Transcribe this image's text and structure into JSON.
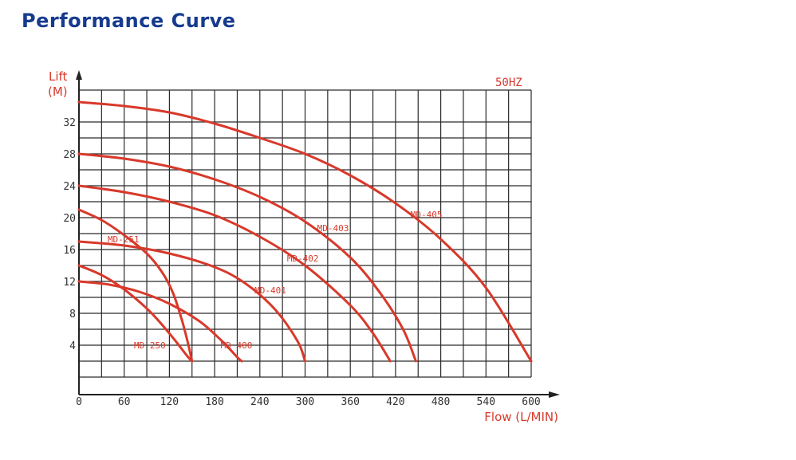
{
  "page": {
    "title": "Performance Curve"
  },
  "chart_data": {
    "type": "line",
    "title": "",
    "frequency_label": "50HZ",
    "xlabel": "Flow (L/MIN)",
    "ylabel": "Lift",
    "ylabel_unit": "(M)",
    "xlim": [
      0,
      600
    ],
    "ylim": [
      0,
      36
    ],
    "x_ticks": [
      0,
      60,
      120,
      180,
      240,
      300,
      360,
      420,
      480,
      540,
      600
    ],
    "y_ticks": [
      4,
      8,
      12,
      16,
      20,
      24,
      28,
      32
    ],
    "grid": true,
    "colors": {
      "curve": "#d8392b",
      "grid": "#2a2a2a",
      "axis": "#222222",
      "title": "#163a8e"
    },
    "series": [
      {
        "name": "MD-405",
        "x": [
          0,
          60,
          120,
          180,
          240,
          300,
          360,
          420,
          480,
          540,
          600
        ],
        "y": [
          34.5,
          34,
          33.2,
          31.8,
          30,
          28,
          25.3,
          21.8,
          17.3,
          11.2,
          2
        ]
      },
      {
        "name": "MD-403",
        "x": [
          0,
          60,
          120,
          180,
          240,
          300,
          360,
          400,
          430,
          447
        ],
        "y": [
          28,
          27.4,
          26.4,
          24.8,
          22.6,
          19.5,
          15,
          10.5,
          6,
          2
        ]
      },
      {
        "name": "MD-402",
        "x": [
          0,
          60,
          120,
          180,
          240,
          300,
          360,
          390,
          413
        ],
        "y": [
          24,
          23.2,
          22,
          20.3,
          17.6,
          14,
          9,
          5.5,
          2
        ]
      },
      {
        "name": "MD-401",
        "x": [
          0,
          60,
          120,
          180,
          220,
          260,
          290,
          300
        ],
        "y": [
          17,
          16.5,
          15.5,
          13.8,
          11.8,
          8.5,
          4.5,
          2
        ]
      },
      {
        "name": "MD-400",
        "x": [
          0,
          40,
          80,
          120,
          160,
          190,
          210,
          216
        ],
        "y": [
          12,
          11.6,
          10.7,
          9.2,
          7,
          4.5,
          2.5,
          2
        ]
      },
      {
        "name": "MD-251",
        "x": [
          0,
          30,
          60,
          90,
          110,
          125,
          137,
          144,
          150
        ],
        "y": [
          21,
          19.7,
          17.8,
          15.5,
          13.2,
          10.5,
          7,
          4.5,
          2
        ]
      },
      {
        "name": "MD-250",
        "x": [
          0,
          30,
          60,
          90,
          110,
          130,
          144,
          150
        ],
        "y": [
          14,
          12.8,
          11,
          8.6,
          6.6,
          4.3,
          2.6,
          2
        ]
      }
    ],
    "annotations": [
      {
        "text": "MD-405",
        "series": "MD-405",
        "x": 440,
        "y": 20
      },
      {
        "text": "MD-403",
        "series": "MD-403",
        "x": 316,
        "y": 18.3
      },
      {
        "text": "MD-402",
        "series": "MD-402",
        "x": 276,
        "y": 14.5
      },
      {
        "text": "MD-401",
        "series": "MD-401",
        "x": 233,
        "y": 10.5
      },
      {
        "text": "MD 400",
        "series": "MD-400",
        "x": 188,
        "y": 3.6
      },
      {
        "text": "MD-251",
        "series": "MD-251",
        "x": 38,
        "y": 16.9
      },
      {
        "text": "MD 250",
        "series": "MD-250",
        "x": 73,
        "y": 3.6
      }
    ]
  }
}
